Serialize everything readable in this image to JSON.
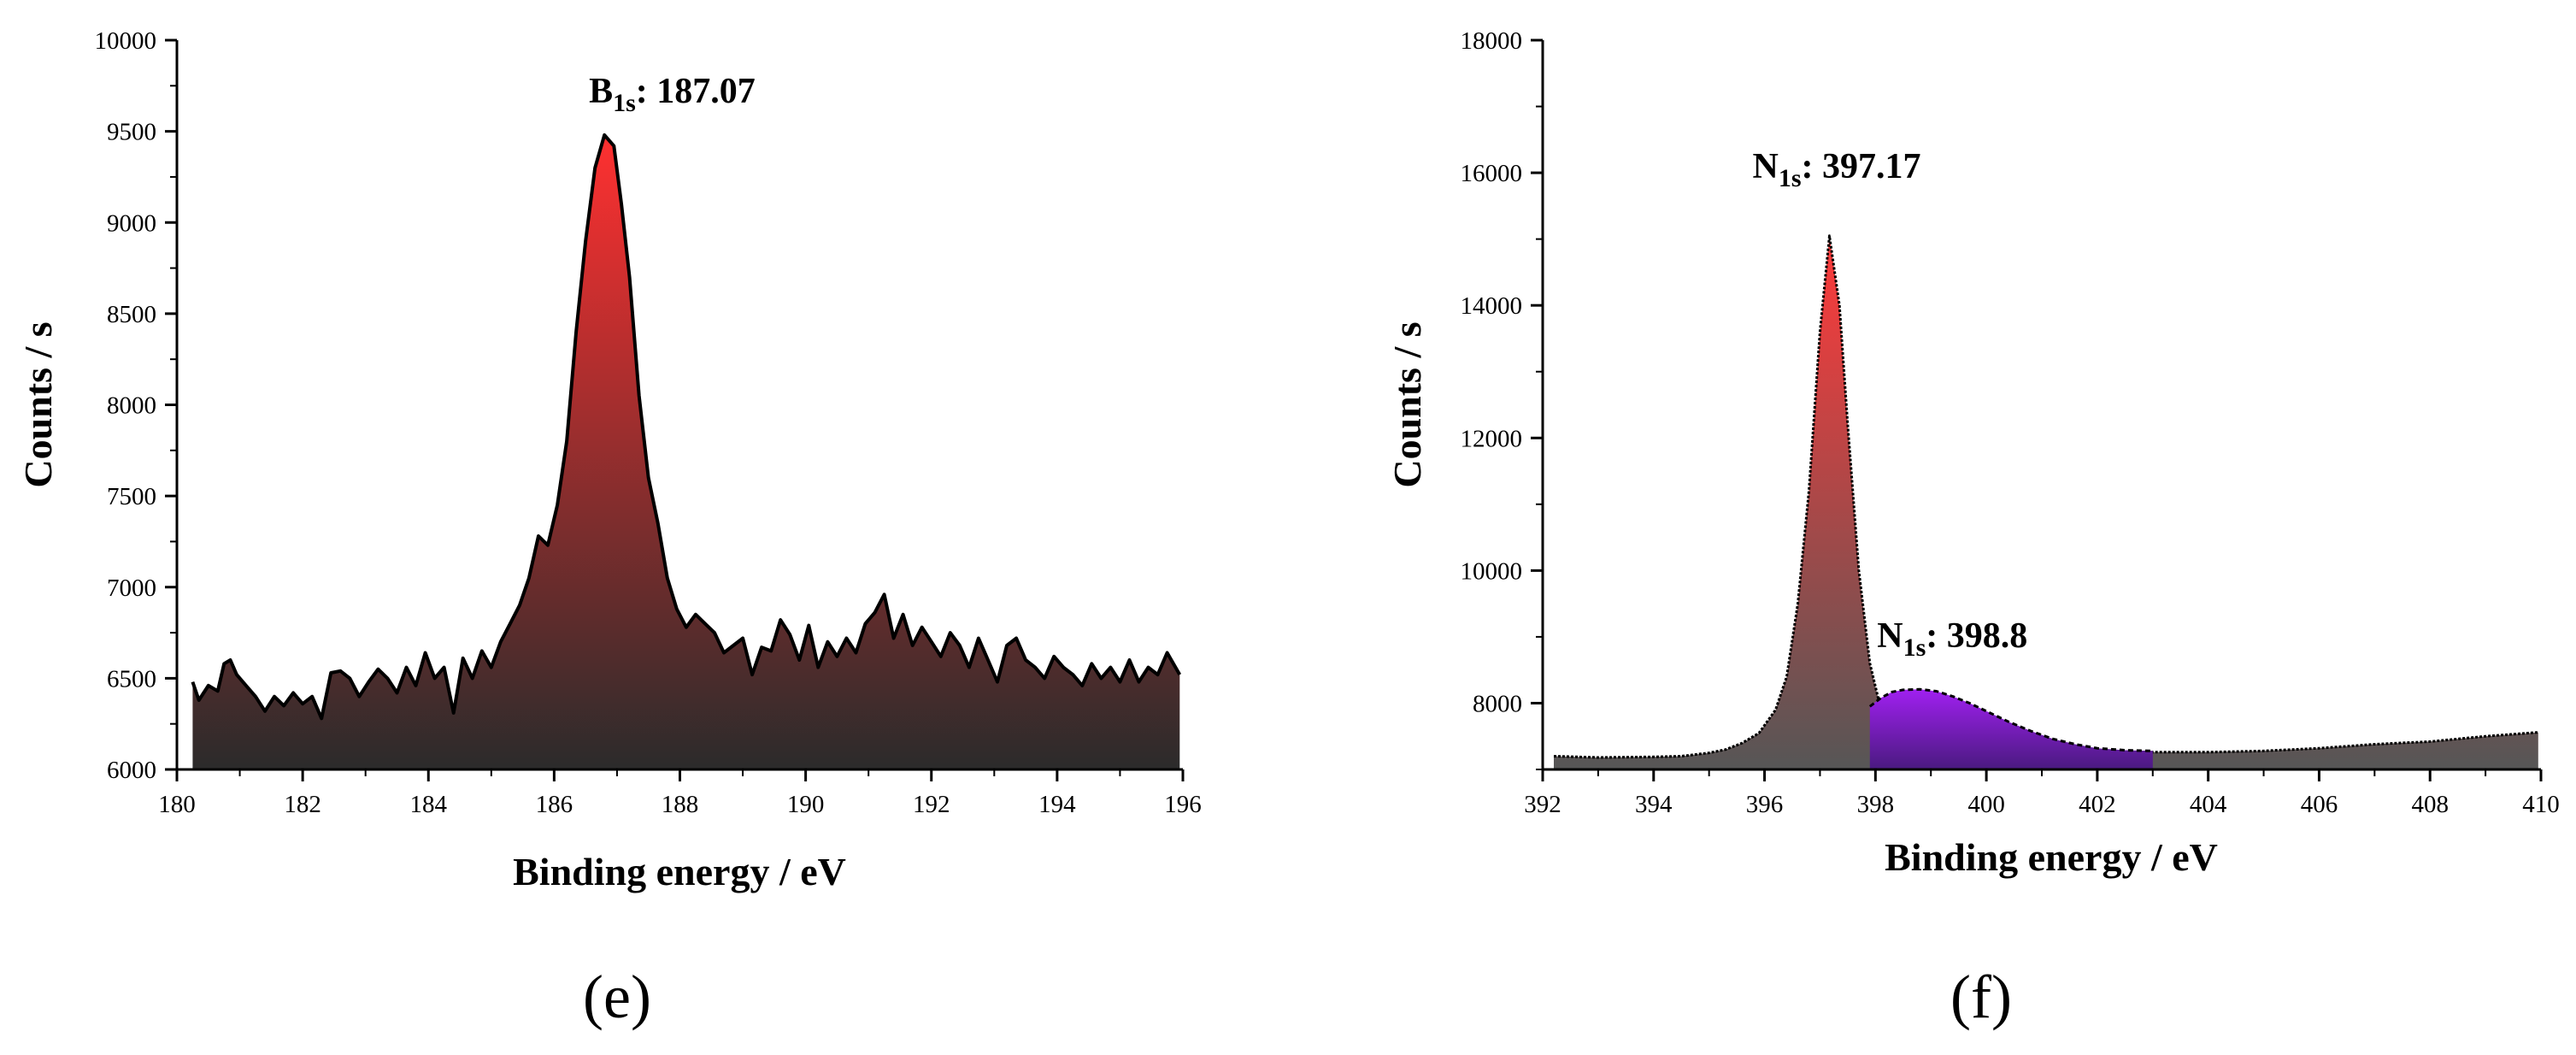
{
  "figure": {
    "panel_labels": [
      "(e)",
      "(f)"
    ]
  },
  "chart_data": [
    {
      "type": "area",
      "panel": "(e)",
      "xlabel": "Binding energy / eV",
      "ylabel": "Counts / s",
      "xlim": [
        180,
        196
      ],
      "ylim": [
        6000,
        10000
      ],
      "xticks": [
        180,
        182,
        184,
        186,
        188,
        190,
        192,
        194,
        196
      ],
      "yticks": [
        6000,
        6500,
        7000,
        7500,
        8000,
        8500,
        9000,
        9500,
        10000
      ],
      "annotations": [
        {
          "main": "B",
          "sub": "1s",
          "rest": ": 187.07",
          "x": 187.07,
          "y": 9480
        }
      ],
      "fill_gradient": {
        "top": "#ff3030",
        "bottom": "#2b2b2b"
      },
      "line_color": "#000000",
      "x": [
        180.25,
        180.35,
        180.5,
        180.65,
        180.75,
        180.85,
        180.95,
        181.1,
        181.25,
        181.4,
        181.55,
        181.7,
        181.85,
        182.0,
        182.15,
        182.3,
        182.45,
        182.6,
        182.75,
        182.9,
        183.05,
        183.2,
        183.35,
        183.5,
        183.65,
        183.8,
        183.95,
        184.1,
        184.25,
        184.4,
        184.55,
        184.7,
        184.85,
        185.0,
        185.15,
        185.3,
        185.45,
        185.6,
        185.75,
        185.9,
        186.05,
        186.2,
        186.35,
        186.5,
        186.65,
        186.8,
        186.95,
        187.07,
        187.2,
        187.35,
        187.5,
        187.65,
        187.8,
        187.95,
        188.1,
        188.25,
        188.4,
        188.55,
        188.7,
        188.85,
        189.0,
        189.15,
        189.3,
        189.45,
        189.6,
        189.75,
        189.9,
        190.05,
        190.2,
        190.35,
        190.5,
        190.65,
        190.8,
        190.95,
        191.1,
        191.25,
        191.4,
        191.55,
        191.7,
        191.85,
        192.0,
        192.15,
        192.3,
        192.45,
        192.6,
        192.75,
        192.9,
        193.05,
        193.2,
        193.35,
        193.5,
        193.65,
        193.8,
        193.95,
        194.1,
        194.25,
        194.4,
        194.55,
        194.7,
        194.85,
        195.0,
        195.15,
        195.3,
        195.45,
        195.6,
        195.75,
        195.95
      ],
      "y": [
        6480,
        6380,
        6460,
        6430,
        6580,
        6600,
        6520,
        6460,
        6400,
        6320,
        6400,
        6350,
        6420,
        6360,
        6400,
        6280,
        6530,
        6540,
        6500,
        6400,
        6480,
        6550,
        6500,
        6420,
        6560,
        6460,
        6640,
        6500,
        6560,
        6310,
        6610,
        6500,
        6650,
        6560,
        6700,
        6800,
        6900,
        7050,
        7280,
        7230,
        7450,
        7800,
        8400,
        8900,
        9300,
        9480,
        9420,
        9100,
        8700,
        8050,
        7600,
        7350,
        7050,
        6880,
        6780,
        6850,
        6800,
        6750,
        6640,
        6680,
        6720,
        6520,
        6670,
        6650,
        6820,
        6740,
        6600,
        6790,
        6560,
        6700,
        6620,
        6720,
        6640,
        6800,
        6860,
        6960,
        6720,
        6850,
        6680,
        6780,
        6700,
        6620,
        6750,
        6680,
        6560,
        6720,
        6600,
        6480,
        6680,
        6720,
        6600,
        6560,
        6500,
        6620,
        6560,
        6520,
        6460,
        6580,
        6500,
        6560,
        6480,
        6600,
        6480,
        6560,
        6520,
        6640,
        6520
      ]
    },
    {
      "type": "area",
      "panel": "(f)",
      "xlabel": "Binding energy / eV",
      "ylabel": "Counts / s",
      "xlim": [
        392,
        410
      ],
      "ylim": [
        7000,
        18000
      ],
      "xticks": [
        392,
        394,
        396,
        398,
        400,
        402,
        404,
        406,
        408,
        410
      ],
      "yticks": [
        8000,
        10000,
        12000,
        14000,
        16000,
        18000
      ],
      "annotations": [
        {
          "main": "N",
          "sub": "1s",
          "rest": ": 397.17",
          "x": 397.17,
          "y": 15050
        },
        {
          "main": "N",
          "sub": "1s",
          "rest": ":   398.8",
          "x": 398.8,
          "y": 8200
        }
      ],
      "series": [
        {
          "fill_gradient": {
            "top": "#ff3a3a",
            "bottom": "#565656"
          },
          "x": [
            392.2,
            393.0,
            394.0,
            394.5,
            395.0,
            395.3,
            395.6,
            395.9,
            396.2,
            396.4,
            396.6,
            396.8,
            397.0,
            397.17,
            397.35,
            397.5,
            397.7,
            397.9,
            398.1,
            398.3,
            398.6,
            399.0,
            399.5,
            400.0,
            401.0,
            402.0,
            403.0,
            404.0,
            405.0,
            406.0,
            407.0,
            408.0,
            409.0,
            409.95
          ],
          "y": [
            7200,
            7180,
            7190,
            7200,
            7250,
            7300,
            7400,
            7550,
            7900,
            8400,
            9500,
            11200,
            13600,
            15050,
            14000,
            12200,
            10000,
            8600,
            7900,
            7600,
            7450,
            7380,
            7330,
            7300,
            7270,
            7260,
            7260,
            7260,
            7280,
            7320,
            7380,
            7420,
            7500,
            7560
          ]
        },
        {
          "fill_gradient": {
            "top": "#a020f0",
            "bottom": "#4a1a80"
          },
          "x": [
            397.9,
            398.1,
            398.3,
            398.5,
            398.8,
            399.1,
            399.4,
            399.7,
            400.0,
            400.4,
            400.8,
            401.2,
            401.6,
            402.0,
            402.5,
            403.0
          ],
          "y": [
            7950,
            8080,
            8170,
            8200,
            8210,
            8180,
            8100,
            8000,
            7880,
            7720,
            7580,
            7460,
            7380,
            7320,
            7290,
            7280
          ]
        }
      ]
    }
  ]
}
